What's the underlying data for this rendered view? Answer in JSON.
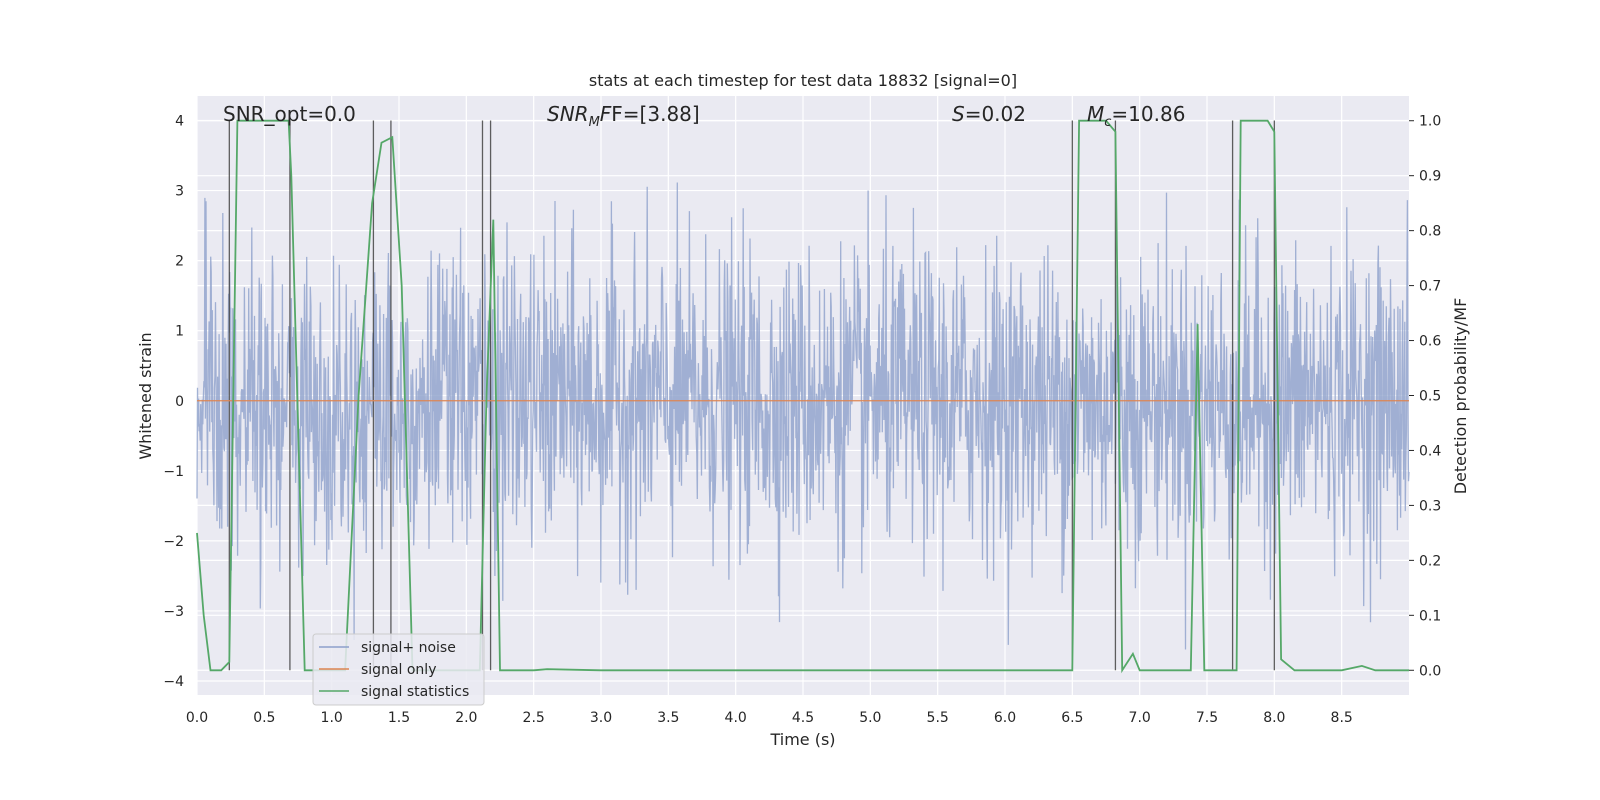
{
  "chart_data": {
    "type": "line",
    "title": "stats at each timestep for test data 18832 [signal=0]",
    "xlabel": "Time (s)",
    "ylabel": "Whitened strain",
    "ylabel_right": "Detection probability/MF",
    "xlim": [
      0.0,
      9.0
    ],
    "ylim": [
      -4.2,
      4.35
    ],
    "ylim_right": [
      -0.045,
      1.045
    ],
    "x_ticks": [
      0.0,
      0.5,
      1.0,
      1.5,
      2.0,
      2.5,
      3.0,
      3.5,
      4.0,
      4.5,
      5.0,
      5.5,
      6.0,
      6.5,
      7.0,
      7.5,
      8.0,
      8.5
    ],
    "x_tick_labels": [
      "0.0",
      "0.5",
      "1.0",
      "1.5",
      "2.0",
      "2.5",
      "3.0",
      "3.5",
      "4.0",
      "4.5",
      "5.0",
      "5.5",
      "6.0",
      "6.5",
      "7.0",
      "7.5",
      "8.0",
      "8.5"
    ],
    "y_ticks": [
      -4,
      -3,
      -2,
      -1,
      0,
      1,
      2,
      3,
      4
    ],
    "y_tick_labels": [
      "−4",
      "−3",
      "−2",
      "−1",
      "0",
      "1",
      "2",
      "3",
      "4"
    ],
    "y_right_ticks": [
      0.0,
      0.1,
      0.2,
      0.3,
      0.4,
      0.5,
      0.6,
      0.7,
      0.8,
      0.9,
      1.0
    ],
    "y_right_tick_labels": [
      "0.0",
      "0.1",
      "0.2",
      "0.3",
      "0.4",
      "0.5",
      "0.6",
      "0.7",
      "0.8",
      "0.9",
      "1.0"
    ],
    "grid": true,
    "legend_position": "lower-left",
    "annotations": {
      "snr_opt": "SNR_opt=0.0",
      "snr_mf_main": "SNR",
      "snr_mf_sub": "M",
      "snr_mf_rest": "F=[3.88]",
      "s_italic": "S",
      "s_rest": "=0.02",
      "m_italic": "M",
      "m_sub": "c",
      "m_rest": "=10.86"
    },
    "series": [
      {
        "name": "signal+ noise",
        "color": "#8da0cb",
        "axis": "left",
        "description_style": "dense whitened noise, roughly uniform with typical amplitude about 1.5, peaks reaching about 3.5"
      },
      {
        "name": "signal only",
        "color": "#dd8452",
        "axis": "left",
        "x": [
          0.0,
          9.0
        ],
        "y": [
          0.0,
          0.0
        ]
      },
      {
        "name": "signal statistics",
        "color": "#55a868",
        "axis": "right",
        "x": [
          0.0,
          0.05,
          0.1,
          0.18,
          0.24,
          0.3,
          0.5,
          0.68,
          0.7,
          0.8,
          0.9,
          1.0,
          1.1,
          1.2,
          1.3,
          1.37,
          1.45,
          1.52,
          1.6,
          1.7,
          1.8,
          1.9,
          2.0,
          2.1,
          2.15,
          2.2,
          2.25,
          2.3,
          2.5,
          2.6,
          3.0,
          4.0,
          5.0,
          6.0,
          6.5,
          6.55,
          6.75,
          6.82,
          6.87,
          6.95,
          7.0,
          7.2,
          7.38,
          7.43,
          7.48,
          7.6,
          7.72,
          7.75,
          7.95,
          8.0,
          8.05,
          8.15,
          8.3,
          8.5,
          8.65,
          8.75,
          9.0
        ],
        "y": [
          0.25,
          0.1,
          0.0,
          0.0,
          0.015,
          1.0,
          1.0,
          1.0,
          0.9,
          0.0,
          0.0,
          0.0,
          0.0,
          0.5,
          0.85,
          0.96,
          0.97,
          0.7,
          0.0,
          0.0,
          0.0,
          0.0,
          0.0,
          0.0,
          0.5,
          0.82,
          0.0,
          0.0,
          0.0,
          0.002,
          0.0,
          0.0,
          0.0,
          0.0,
          0.0,
          1.0,
          1.0,
          0.98,
          0.0,
          0.03,
          0.0,
          0.0,
          0.0,
          0.63,
          0.0,
          0.0,
          0.0,
          1.0,
          1.0,
          0.98,
          0.02,
          0.0,
          0.0,
          0.0,
          0.008,
          0.0,
          0.0
        ]
      }
    ],
    "vertical_lines_x": [
      0.24,
      0.69,
      1.31,
      1.44,
      2.12,
      2.18,
      6.5,
      6.82,
      7.69,
      8.0
    ]
  }
}
